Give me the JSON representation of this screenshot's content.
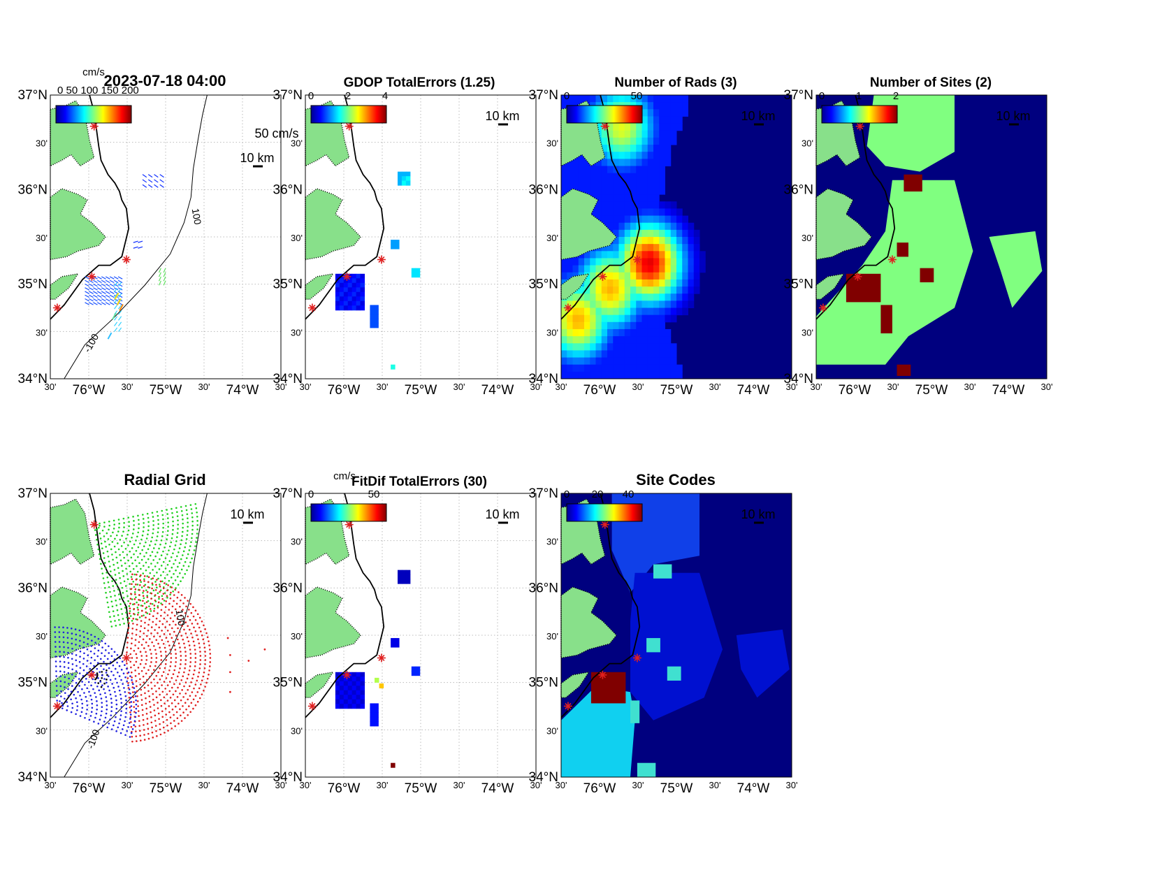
{
  "figure_title": "2023-07-18 04:00",
  "colors": {
    "land": "#88e08a",
    "coast": "#000000",
    "site_marker": "#e02020",
    "grid": "#bbbbbb",
    "jet_dark_blue": "#00007f"
  },
  "panels": [
    {
      "id": "currents",
      "title": "2023-07-18 04:00",
      "units_label": "cm/s",
      "vector_scale_label": "50 cm/s",
      "distance_scale_label": "10 km",
      "isobath_labels": [
        "100",
        "-100"
      ],
      "overlapping_label_text": "0 50 100 150 200",
      "colorbar": true,
      "tick_labels": true
    },
    {
      "id": "gdop",
      "title": "GDOP TotalErrors (1.25)",
      "colorbar_ticks": [
        "0",
        "2",
        "4"
      ],
      "distance_scale_label": "10 km"
    },
    {
      "id": "nrads",
      "title": "Number of Rads (3)",
      "colorbar_ticks": [
        "0",
        "50"
      ],
      "distance_scale_label": "10 km"
    },
    {
      "id": "nsites",
      "title": "Number of Sites (2)",
      "colorbar_ticks": [
        "0",
        "1",
        "2"
      ],
      "distance_scale_label": "10 km"
    },
    {
      "id": "radgrid",
      "title": "Radial Grid",
      "distance_scale_label": "10 km",
      "isobath_labels": [
        "100",
        "-100"
      ]
    },
    {
      "id": "fitdif",
      "title": "FitDif TotalErrors (30)",
      "units_label": "cm/s",
      "colorbar_ticks": [
        "0",
        "50"
      ],
      "distance_scale_label": "10 km"
    },
    {
      "id": "sitecodes",
      "title": "Site Codes",
      "colorbar_ticks": [
        "0",
        "20",
        "40"
      ],
      "distance_scale_label": "10 km"
    }
  ],
  "axes": {
    "lat_labels": [
      "37°N",
      "30'",
      "36°N",
      "30'",
      "35°N",
      "30'",
      "34°N"
    ],
    "lon_labels": [
      "30'",
      "76°W",
      "30'",
      "75°W",
      "30'",
      "74°W",
      "30'"
    ]
  }
}
